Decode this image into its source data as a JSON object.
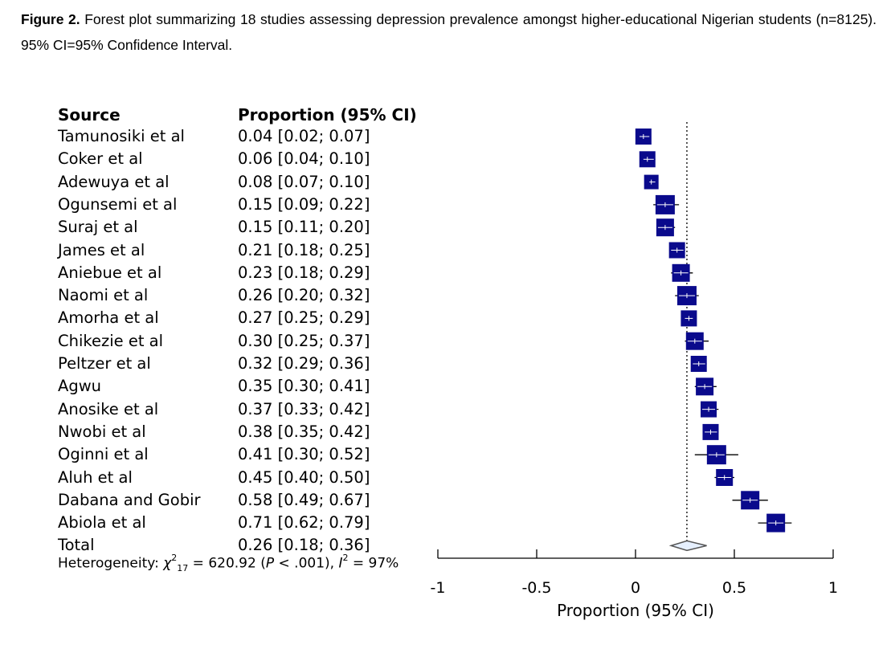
{
  "caption": {
    "label": "Figure 2.",
    "text": " Forest plot summarizing 18 studies assessing depression prevalence amongst higher-educational Nigerian students (n=8125). 95% CI=95% Confidence Interval."
  },
  "columns": {
    "source": "Source",
    "proportion": "Proportion (95% CI)"
  },
  "heterogeneity": {
    "prefix": "Heterogeneity: ",
    "chi": "χ",
    "chi_sup": "2",
    "chi_sub": "17",
    "mid": " = 620.92 (",
    "p": "P",
    "p_rest": " < .001), ",
    "i": "I",
    "i_sup": "2",
    "i_rest": " = 97%"
  },
  "chart_data": {
    "type": "forest",
    "xlabel": "Proportion (95% CI)",
    "xlim": [
      -1,
      1
    ],
    "ticks": [
      -1,
      -0.5,
      0,
      0.5,
      1
    ],
    "tick_labels": [
      "-1",
      "-0.5",
      "0",
      "0.5",
      "1"
    ],
    "reference_line": 0.26,
    "colors": {
      "box": "#0a0a8c",
      "line": "#000000",
      "diamond_fill": "#e6f0ff",
      "diamond_stroke": "#555555"
    },
    "studies": [
      {
        "source": "Tamunosiki et al",
        "ci_text": "0.04 [0.02; 0.07]",
        "est": 0.04,
        "lo": 0.02,
        "hi": 0.07,
        "weight": 1.0
      },
      {
        "source": "Coker et al",
        "ci_text": "0.06 [0.04; 0.10]",
        "est": 0.06,
        "lo": 0.04,
        "hi": 0.1,
        "weight": 1.0
      },
      {
        "source": "Adewuya et al",
        "ci_text": "0.08 [0.07; 0.10]",
        "est": 0.08,
        "lo": 0.07,
        "hi": 0.1,
        "weight": 0.9
      },
      {
        "source": "Ogunsemi et al",
        "ci_text": "0.15 [0.09; 0.22]",
        "est": 0.15,
        "lo": 0.09,
        "hi": 0.22,
        "weight": 1.2
      },
      {
        "source": "Suraj et al",
        "ci_text": "0.15 [0.11; 0.20]",
        "est": 0.15,
        "lo": 0.11,
        "hi": 0.2,
        "weight": 1.1
      },
      {
        "source": "James et al",
        "ci_text": "0.21 [0.18; 0.25]",
        "est": 0.21,
        "lo": 0.18,
        "hi": 0.25,
        "weight": 1.0
      },
      {
        "source": "Aniebue et al",
        "ci_text": "0.23 [0.18; 0.29]",
        "est": 0.23,
        "lo": 0.18,
        "hi": 0.29,
        "weight": 1.1
      },
      {
        "source": "Naomi et al",
        "ci_text": "0.26 [0.20; 0.32]",
        "est": 0.26,
        "lo": 0.2,
        "hi": 0.32,
        "weight": 1.2
      },
      {
        "source": "Amorha et al",
        "ci_text": "0.27 [0.25; 0.29]",
        "est": 0.27,
        "lo": 0.25,
        "hi": 0.29,
        "weight": 1.0
      },
      {
        "source": "Chikezie et al",
        "ci_text": "0.30 [0.25; 0.37]",
        "est": 0.3,
        "lo": 0.25,
        "hi": 0.37,
        "weight": 1.1
      },
      {
        "source": "Peltzer et al",
        "ci_text": "0.32 [0.29; 0.36]",
        "est": 0.32,
        "lo": 0.29,
        "hi": 0.36,
        "weight": 1.0
      },
      {
        "source": "Agwu",
        "ci_text": "0.35 [0.30; 0.41]",
        "est": 0.35,
        "lo": 0.3,
        "hi": 0.41,
        "weight": 1.1
      },
      {
        "source": "Anosike et al",
        "ci_text": "0.37 [0.33; 0.42]",
        "est": 0.37,
        "lo": 0.33,
        "hi": 0.42,
        "weight": 1.0
      },
      {
        "source": "Nwobi et al",
        "ci_text": "0.38 [0.35; 0.42]",
        "est": 0.38,
        "lo": 0.35,
        "hi": 0.42,
        "weight": 1.0
      },
      {
        "source": "Oginni et al",
        "ci_text": "0.41 [0.30; 0.52]",
        "est": 0.41,
        "lo": 0.3,
        "hi": 0.52,
        "weight": 1.2
      },
      {
        "source": "Aluh et al",
        "ci_text": "0.45 [0.40; 0.50]",
        "est": 0.45,
        "lo": 0.4,
        "hi": 0.5,
        "weight": 1.05
      },
      {
        "source": "Dabana and Gobir",
        "ci_text": "0.58 [0.49; 0.67]",
        "est": 0.58,
        "lo": 0.49,
        "hi": 0.67,
        "weight": 1.15
      },
      {
        "source": "Abiola et al",
        "ci_text": "0.71 [0.62; 0.79]",
        "est": 0.71,
        "lo": 0.62,
        "hi": 0.79,
        "weight": 1.15
      }
    ],
    "total": {
      "source": "Total",
      "ci_text": "0.26 [0.18; 0.36]",
      "est": 0.26,
      "lo": 0.18,
      "hi": 0.36
    }
  }
}
